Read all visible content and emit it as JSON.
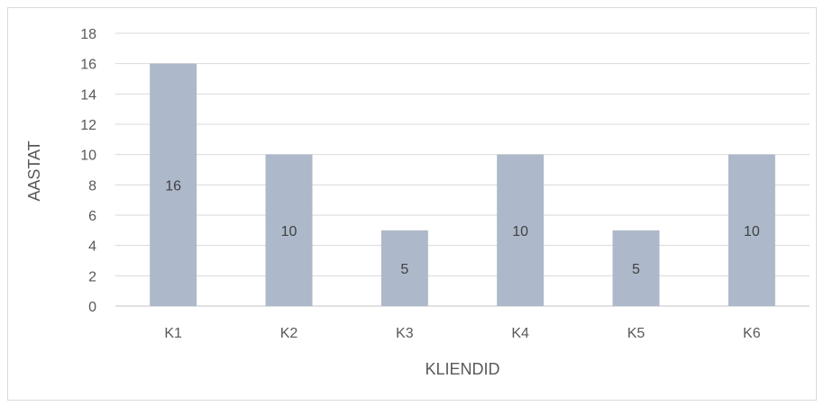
{
  "chart_data": {
    "type": "bar",
    "categories": [
      "K1",
      "K2",
      "K3",
      "K4",
      "K5",
      "K6"
    ],
    "values": [
      16,
      10,
      5,
      10,
      5,
      10
    ],
    "data_labels": [
      "16",
      "10",
      "5",
      "10",
      "5",
      "10"
    ],
    "xlabel": "KLIENDID",
    "ylabel": "AASTAT",
    "ylim": [
      0,
      18
    ],
    "y_ticks": [
      0,
      2,
      4,
      6,
      8,
      10,
      12,
      14,
      16,
      18
    ],
    "grid": true,
    "legend": "none",
    "bar_color": "#adb9ca",
    "grid_color": "#d9d9d9"
  }
}
